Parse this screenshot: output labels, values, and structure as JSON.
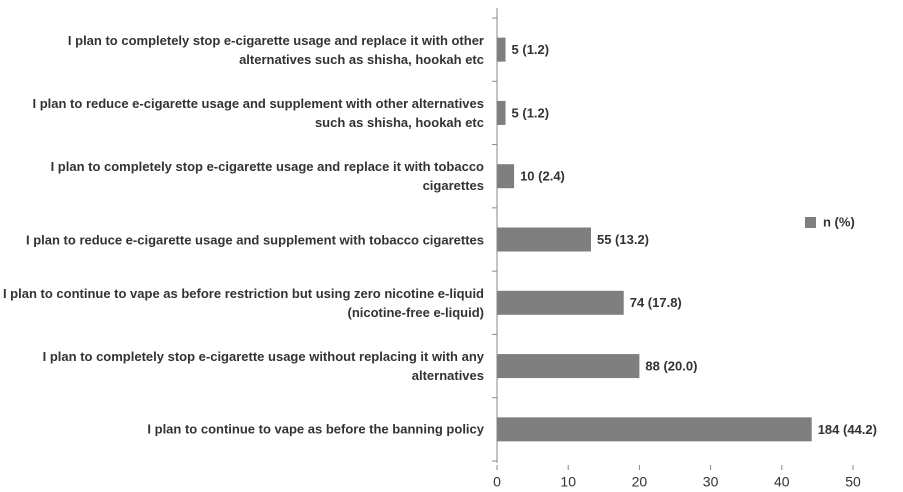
{
  "chart_data": {
    "type": "bar",
    "orientation": "horizontal",
    "categories": [
      "I plan to completely stop e-cigarette usage and replace it with other alternatives such as shisha, hookah etc",
      "I plan to reduce e-cigarette usage and supplement with other alternatives such as shisha, hookah etc",
      "I plan to completely stop e-cigarette usage and replace it with tobacco cigarettes",
      "I plan to reduce e-cigarette usage and supplement with tobacco cigarettes",
      "I plan to continue to vape as before restriction but using zero nicotine e-liquid (nicotine-free e-liquid)",
      "I plan to completely stop e-cigarette usage without replacing it with any alternatives",
      "I plan to continue to vape as before the banning policy"
    ],
    "series": [
      {
        "name": "n (%)",
        "color": "#7f7f7f",
        "values": [
          1.2,
          1.2,
          2.4,
          13.2,
          17.8,
          20.0,
          44.2
        ],
        "value_labels": [
          "5 (1.2)",
          "5 (1.2)",
          "10 (2.4)",
          "55 (13.2)",
          "74 (17.8)",
          "88 (20.0)",
          "184 (44.2)"
        ]
      }
    ],
    "xlim": [
      0,
      50
    ],
    "xticks": [
      0,
      10,
      20,
      30,
      40,
      50
    ],
    "legend": "right"
  }
}
